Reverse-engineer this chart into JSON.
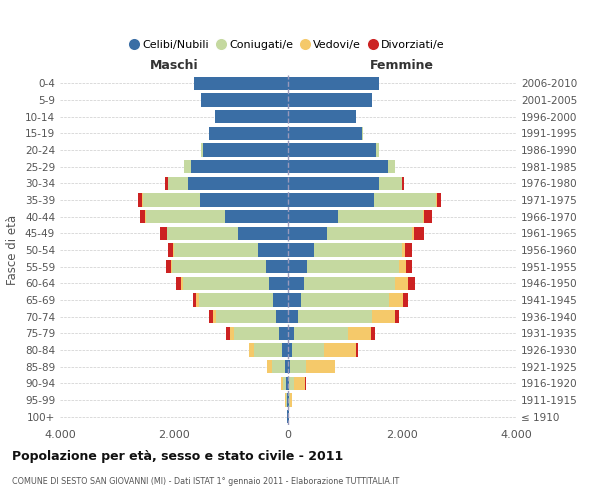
{
  "age_groups": [
    "100+",
    "95-99",
    "90-94",
    "85-89",
    "80-84",
    "75-79",
    "70-74",
    "65-69",
    "60-64",
    "55-59",
    "50-54",
    "45-49",
    "40-44",
    "35-39",
    "30-34",
    "25-29",
    "20-24",
    "15-19",
    "10-14",
    "5-9",
    "0-4"
  ],
  "birth_years": [
    "≤ 1910",
    "1911-1915",
    "1916-1920",
    "1921-1925",
    "1926-1930",
    "1931-1935",
    "1936-1940",
    "1941-1945",
    "1946-1950",
    "1951-1955",
    "1956-1960",
    "1961-1965",
    "1966-1970",
    "1971-1975",
    "1976-1980",
    "1981-1985",
    "1986-1990",
    "1991-1995",
    "1996-2000",
    "2001-2005",
    "2006-2010"
  ],
  "males_celibi": [
    10,
    15,
    30,
    60,
    100,
    160,
    210,
    260,
    340,
    390,
    520,
    870,
    1100,
    1550,
    1750,
    1700,
    1500,
    1380,
    1280,
    1530,
    1650
  ],
  "males_coniugati": [
    5,
    20,
    50,
    220,
    500,
    780,
    1050,
    1300,
    1500,
    1650,
    1480,
    1250,
    1400,
    1000,
    350,
    120,
    30,
    5,
    0,
    0,
    0
  ],
  "males_vedovi": [
    2,
    10,
    40,
    80,
    80,
    70,
    60,
    50,
    30,
    20,
    10,
    5,
    5,
    5,
    5,
    0,
    0,
    0,
    0,
    0,
    0
  ],
  "males_divorziati": [
    1,
    2,
    5,
    10,
    10,
    70,
    70,
    60,
    100,
    80,
    90,
    120,
    100,
    80,
    50,
    10,
    5,
    0,
    0,
    0,
    0
  ],
  "females_nubili": [
    10,
    18,
    25,
    40,
    70,
    110,
    170,
    220,
    280,
    340,
    450,
    680,
    870,
    1500,
    1600,
    1750,
    1550,
    1300,
    1200,
    1480,
    1600
  ],
  "females_coniugate": [
    5,
    25,
    80,
    280,
    560,
    950,
    1300,
    1550,
    1600,
    1600,
    1550,
    1500,
    1500,
    1100,
    400,
    130,
    50,
    10,
    0,
    0,
    0
  ],
  "females_vedove": [
    5,
    30,
    200,
    500,
    560,
    400,
    400,
    250,
    220,
    130,
    60,
    30,
    15,
    10,
    5,
    0,
    0,
    0,
    0,
    0,
    0
  ],
  "females_divorziate": [
    1,
    2,
    5,
    10,
    30,
    70,
    80,
    80,
    120,
    100,
    110,
    170,
    140,
    80,
    30,
    5,
    0,
    0,
    0,
    0,
    0
  ],
  "colors": {
    "celibi_nubili": "#3a6ea5",
    "coniugati": "#c5d9a0",
    "vedovi": "#f5c96a",
    "divorziati": "#cc2222"
  },
  "title": "Popolazione per età, sesso e stato civile - 2011",
  "subtitle": "COMUNE DI SESTO SAN GIOVANNI (MI) - Dati ISTAT 1° gennaio 2011 - Elaborazione TUTTITALIA.IT",
  "label_maschi": "Maschi",
  "label_femmine": "Femmine",
  "ylabel_left": "Fasce di età",
  "xlim": 4000,
  "legend_labels": [
    "Celibi/Nubili",
    "Coniugati/e",
    "Vedovi/e",
    "Divorziati/e"
  ],
  "bg_color": "#ffffff",
  "grid_color": "#cccccc"
}
